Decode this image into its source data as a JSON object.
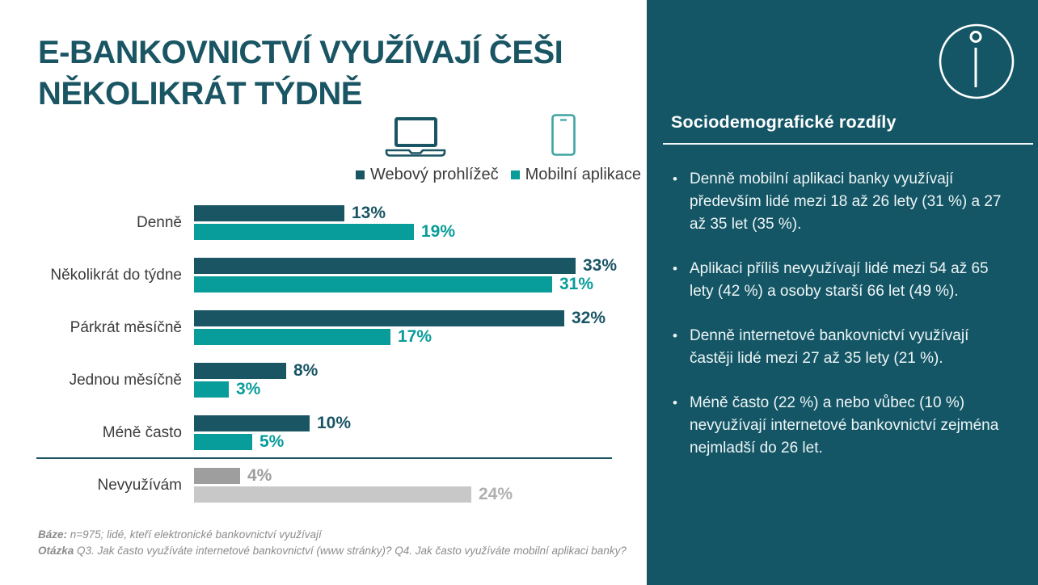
{
  "title": "E-BANKOVNICTVÍ VYUŽÍVAJÍ ČEŠI\nNĚKOLIKRÁT TÝDNĚ",
  "colors": {
    "dark_teal": "#1a5564",
    "teal": "#089c9a",
    "panel_background": "#145666",
    "muted_gray_dark": "#9e9e9e",
    "muted_gray_light": "#c8c8c8",
    "text_gray": "#3b3b3b",
    "footnote_gray": "#8c8c8c"
  },
  "icons": {
    "laptop": "laptop-icon",
    "phone": "smartphone-icon",
    "logo": "info-circle-logo-icon"
  },
  "chart_data": {
    "type": "bar",
    "orientation": "horizontal",
    "title": "E-BANKOVNICTVÍ VYUŽÍVAJÍ ČEŠI NĚKOLIKRÁT TÝDNĚ",
    "unit": "%",
    "xlim": [
      0,
      35
    ],
    "grid": false,
    "legend_position": "top",
    "categories": [
      "Denně",
      "Několikrát do týdne",
      "Párkrát měsíčně",
      "Jednou měsíčně",
      "Méně často",
      "Nevyužívám"
    ],
    "series": [
      {
        "name": "Webový prohlížeč",
        "color": "#1a5564",
        "values": [
          13,
          33,
          32,
          8,
          10,
          4
        ]
      },
      {
        "name": "Mobilní aplikace",
        "color": "#089c9a",
        "values": [
          19,
          31,
          17,
          3,
          5,
          24
        ]
      }
    ],
    "muted_category": "Nevyužívám",
    "muted_colors": [
      "#9e9e9e",
      "#c8c8c8"
    ],
    "muted_label_colors": [
      "#9e9e9e",
      "#b0b0b0"
    ]
  },
  "sidebar": {
    "heading": "Sociodemografické rozdíly",
    "bullets": [
      "Denně mobilní aplikaci banky využívají především lidé mezi 18 až 26 lety (31 %) a 27 až 35 let (35 %).",
      "Aplikaci příliš nevyužívají lidé mezi 54 až 65 lety (42 %) a osoby starší 66 let (49 %).",
      "Denně internetové bankovnictví využívají častěji lidé mezi 27 až 35 lety (21 %).",
      "Méně často (22 %) a nebo vůbec (10 %) nevyužívají internetové bankovnictví zejména nejmladší do 26 let."
    ]
  },
  "footnote": {
    "line1": {
      "label": "Báze:",
      "text": " n=975; lidé, kteří elektronické bankovnictví využívají"
    },
    "line2": {
      "label": "Otázka",
      "text": " Q3. Jak často využíváte internetové bankovnictví (www stránky)? Q4. Jak často využíváte mobilní aplikaci banky?"
    }
  }
}
